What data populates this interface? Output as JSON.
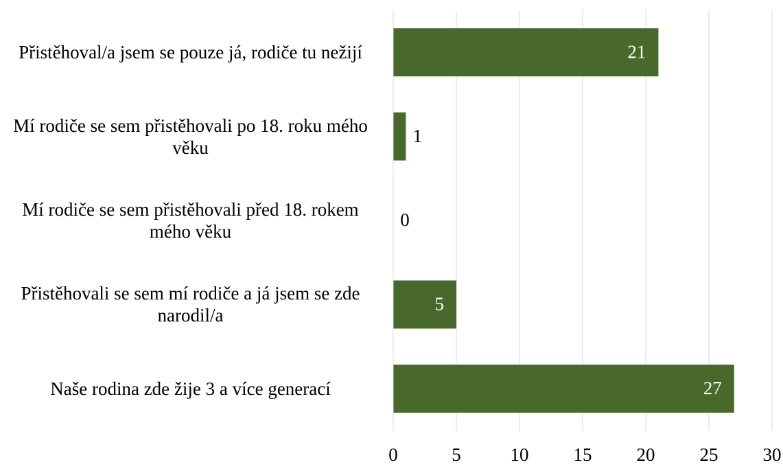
{
  "chart_data": {
    "type": "bar",
    "orientation": "horizontal",
    "categories": [
      "Přistěhoval/a jsem se pouze já, rodiče tu nežijí",
      "Mí rodiče se sem přistěhovali po 18. roku mého věku",
      "Mí rodiče se sem přistěhovali před 18. rokem mého věku",
      "Přistěhovali se sem mí rodiče a já jsem se zde narodil/a",
      "Naše rodina zde žije 3 a více generací"
    ],
    "values": [
      21,
      1,
      0,
      5,
      27
    ],
    "color": "#48692a",
    "xlim": [
      0,
      30
    ],
    "xticks": [
      0,
      5,
      10,
      15,
      20,
      25,
      30
    ],
    "grid": true
  }
}
